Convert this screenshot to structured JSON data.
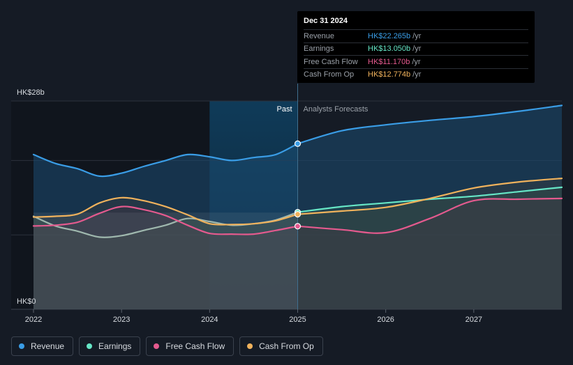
{
  "tooltip": {
    "date": "Dec 31 2024",
    "unit": "/yr",
    "rows": [
      {
        "label": "Revenue",
        "value": "HK$22.265b",
        "color": "#3a9de6"
      },
      {
        "label": "Earnings",
        "value": "HK$13.050b",
        "color": "#66e6c6"
      },
      {
        "label": "Free Cash Flow",
        "value": "HK$11.170b",
        "color": "#e45a8e"
      },
      {
        "label": "Cash From Op",
        "value": "HK$12.774b",
        "color": "#f0b25c"
      }
    ]
  },
  "past_label": "Past",
  "forecast_label": "Analysts Forecasts",
  "legend": [
    {
      "label": "Revenue",
      "color": "#3a9de6"
    },
    {
      "label": "Earnings",
      "color": "#66e6c6"
    },
    {
      "label": "Free Cash Flow",
      "color": "#e45a8e"
    },
    {
      "label": "Cash From Op",
      "color": "#f0b25c"
    }
  ],
  "chart_data": {
    "type": "line",
    "title": "",
    "y_unit": "HK$ billions",
    "y_tick_labels": [
      "HK$28b",
      "HK$0"
    ],
    "ylim": [
      0,
      28
    ],
    "xlim": [
      2022,
      2028
    ],
    "x_ticks": [
      2022,
      2023,
      2024,
      2025,
      2026,
      2027
    ],
    "x_tick_labels": [
      "2022",
      "2023",
      "2024",
      "2025",
      "2026",
      "2027"
    ],
    "past_end": 2025.0,
    "shaded_highlight": [
      2024.0,
      2025.0
    ],
    "series": [
      {
        "name": "Revenue",
        "color": "#3a9de6",
        "points": [
          [
            2022.0,
            20.8
          ],
          [
            2022.25,
            19.6
          ],
          [
            2022.5,
            18.9
          ],
          [
            2022.75,
            17.9
          ],
          [
            2023.0,
            18.3
          ],
          [
            2023.25,
            19.2
          ],
          [
            2023.5,
            20.0
          ],
          [
            2023.75,
            20.8
          ],
          [
            2024.0,
            20.5
          ],
          [
            2024.25,
            20.0
          ],
          [
            2024.5,
            20.4
          ],
          [
            2024.75,
            20.8
          ],
          [
            2025.0,
            22.265
          ],
          [
            2025.5,
            24.0
          ],
          [
            2026.0,
            24.8
          ],
          [
            2026.5,
            25.4
          ],
          [
            2027.0,
            25.9
          ],
          [
            2027.5,
            26.6
          ],
          [
            2028.0,
            27.4
          ]
        ]
      },
      {
        "name": "Earnings",
        "color": "#66e6c6",
        "points": [
          [
            2022.0,
            12.5
          ],
          [
            2022.25,
            11.2
          ],
          [
            2022.5,
            10.5
          ],
          [
            2022.75,
            9.7
          ],
          [
            2023.0,
            9.9
          ],
          [
            2023.25,
            10.6
          ],
          [
            2023.5,
            11.3
          ],
          [
            2023.75,
            12.2
          ],
          [
            2024.0,
            11.8
          ],
          [
            2024.25,
            11.3
          ],
          [
            2024.5,
            11.5
          ],
          [
            2024.75,
            12.0
          ],
          [
            2025.0,
            13.05
          ],
          [
            2025.5,
            13.8
          ],
          [
            2026.0,
            14.3
          ],
          [
            2026.5,
            14.8
          ],
          [
            2027.0,
            15.2
          ],
          [
            2027.5,
            15.8
          ],
          [
            2028.0,
            16.4
          ]
        ]
      },
      {
        "name": "Free Cash Flow",
        "color": "#e45a8e",
        "points": [
          [
            2022.0,
            11.2
          ],
          [
            2022.25,
            11.3
          ],
          [
            2022.5,
            11.7
          ],
          [
            2022.75,
            12.9
          ],
          [
            2023.0,
            13.8
          ],
          [
            2023.25,
            13.4
          ],
          [
            2023.5,
            12.6
          ],
          [
            2023.75,
            11.3
          ],
          [
            2024.0,
            10.2
          ],
          [
            2024.25,
            10.1
          ],
          [
            2024.5,
            10.1
          ],
          [
            2024.75,
            10.6
          ],
          [
            2025.0,
            11.17
          ],
          [
            2025.5,
            10.7
          ],
          [
            2026.0,
            10.3
          ],
          [
            2026.5,
            12.2
          ],
          [
            2027.0,
            14.6
          ],
          [
            2027.5,
            14.8
          ],
          [
            2028.0,
            14.9
          ]
        ]
      },
      {
        "name": "Cash From Op",
        "color": "#f0b25c",
        "points": [
          [
            2022.0,
            12.4
          ],
          [
            2022.25,
            12.5
          ],
          [
            2022.5,
            12.8
          ],
          [
            2022.75,
            14.3
          ],
          [
            2023.0,
            15.0
          ],
          [
            2023.25,
            14.6
          ],
          [
            2023.5,
            13.8
          ],
          [
            2023.75,
            12.7
          ],
          [
            2024.0,
            11.5
          ],
          [
            2024.25,
            11.4
          ],
          [
            2024.5,
            11.5
          ],
          [
            2024.75,
            11.9
          ],
          [
            2025.0,
            12.774
          ],
          [
            2025.5,
            13.2
          ],
          [
            2026.0,
            13.7
          ],
          [
            2026.5,
            14.9
          ],
          [
            2027.0,
            16.3
          ],
          [
            2027.5,
            17.1
          ],
          [
            2028.0,
            17.6
          ]
        ]
      }
    ]
  }
}
